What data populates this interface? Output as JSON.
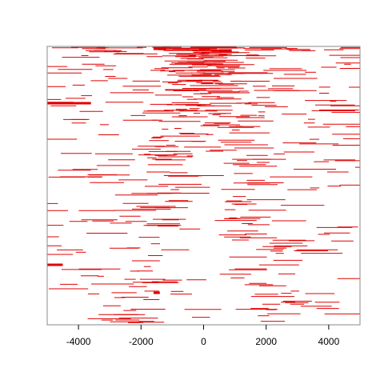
{
  "chart_data": {
    "type": "segment",
    "title": "",
    "xlabel": "",
    "ylabel": "",
    "xlim": [
      -5000,
      5000
    ],
    "ylim": [
      0,
      1
    ],
    "x_ticks": [
      -4000,
      -2000,
      0,
      2000,
      4000
    ],
    "x_tick_labels": [
      "-4000",
      "-2000",
      "0",
      "2000",
      "4000"
    ],
    "grid": false,
    "legend": "none",
    "color": "#e00000",
    "segment_count": 520,
    "segment_length_range": [
      200,
      1400
    ],
    "density_profile": "dense near the top, thinning toward the bottom, with a central inverted-V cluster"
  }
}
